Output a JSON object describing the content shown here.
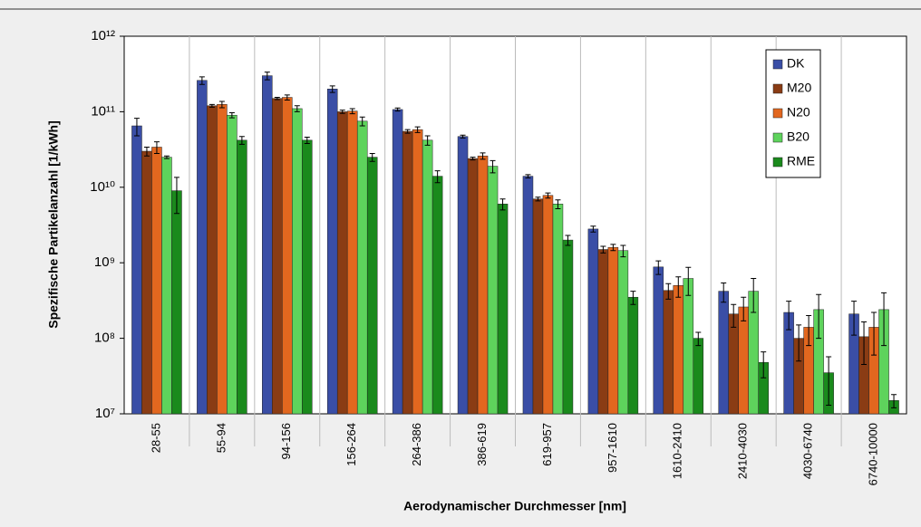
{
  "chart_data": {
    "type": "bar",
    "ylabel": "Spezifische Partikelanzahl [1/kWh]",
    "xlabel": "Aerodynamischer Durchmesser [nm]",
    "categories": [
      "28-55",
      "55-94",
      "94-156",
      "156-264",
      "264-386",
      "386-619",
      "619-957",
      "957-1610",
      "1610-2410",
      "2410-4030",
      "4030-6740",
      "6740-10000"
    ],
    "log_scale": true,
    "ylim": [
      10000000,
      1000000000000
    ],
    "yticks": [
      {
        "value": 10000000,
        "label": "10⁷"
      },
      {
        "value": 100000000,
        "label": "10⁸"
      },
      {
        "value": 1000000000,
        "label": "10⁹"
      },
      {
        "value": 10000000000,
        "label": "10¹⁰"
      },
      {
        "value": 100000000000,
        "label": "10¹¹"
      },
      {
        "value": 1000000000000,
        "label": "10¹²"
      }
    ],
    "legend": "upper right",
    "series": [
      {
        "name": "DK",
        "color": "#3a4ea6",
        "values": [
          65000000000,
          260000000000,
          300000000000,
          200000000000,
          107000000000,
          47000000000,
          14000000000,
          2800000000,
          880000000,
          420000000,
          220000000,
          210000000
        ],
        "errors": [
          17000000000,
          30000000000,
          35000000000,
          20000000000,
          5000000000,
          2000000000,
          700000000,
          250000000,
          180000000,
          120000000,
          90000000,
          100000000
        ]
      },
      {
        "name": "M20",
        "color": "#8a3c14",
        "values": [
          30000000000,
          120000000000,
          150000000000,
          100000000000,
          55000000000,
          24000000000,
          7000000000,
          1500000000,
          430000000,
          210000000,
          100000000,
          105000000
        ],
        "errors": [
          4000000000,
          5000000000,
          5000000000,
          5000000000,
          3000000000,
          1000000000,
          400000000,
          150000000,
          100000000,
          70000000,
          50000000,
          60000000
        ]
      },
      {
        "name": "N20",
        "color": "#e2671f",
        "values": [
          34000000000,
          125000000000,
          155000000000,
          102000000000,
          58000000000,
          26000000000,
          7800000000,
          1600000000,
          500000000,
          260000000,
          140000000,
          140000000
        ],
        "errors": [
          6000000000,
          12000000000,
          12000000000,
          8000000000,
          5000000000,
          2500000000,
          600000000,
          150000000,
          150000000,
          90000000,
          60000000,
          80000000
        ]
      },
      {
        "name": "B20",
        "color": "#5ed35c",
        "values": [
          25000000000,
          90000000000,
          110000000000,
          75000000000,
          42000000000,
          19000000000,
          6000000000,
          1450000000,
          620000000,
          420000000,
          240000000,
          240000000
        ],
        "errors": [
          1000000000,
          7000000000,
          10000000000,
          10000000000,
          6000000000,
          3500000000,
          800000000,
          250000000,
          250000000,
          200000000,
          140000000,
          160000000
        ]
      },
      {
        "name": "RME",
        "color": "#1a8a1c",
        "values": [
          9000000000,
          42000000000,
          42000000000,
          25000000000,
          14000000000,
          6000000000,
          2000000000,
          350000000,
          100000000,
          48000000,
          35000000,
          15000000
        ],
        "errors": [
          4500000000,
          5000000000,
          4000000000,
          3000000000,
          2500000000,
          1000000000,
          300000000,
          70000000,
          20000000,
          18000000,
          22000000,
          3000000
        ]
      }
    ]
  }
}
